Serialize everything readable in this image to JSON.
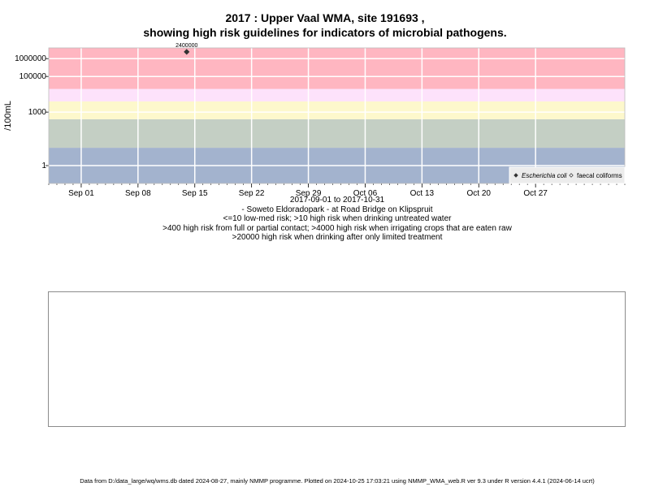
{
  "title": {
    "line1": "2017 : Upper Vaal WMA, site 191693 ,",
    "line2": "showing high risk guidelines for indicators of microbial pathogens."
  },
  "chart_data": {
    "type": "scatter",
    "ylabel": "/100mL",
    "y_scale": "log",
    "ylim": [
      0.1,
      4000000
    ],
    "xlim": [
      "2017-08-28",
      "2017-11-07"
    ],
    "y_ticks": [
      {
        "value": 1,
        "label": "1"
      },
      {
        "value": 1000,
        "label": "1000"
      },
      {
        "value": 100000,
        "label": "100000"
      },
      {
        "value": 1000000,
        "label": "1000000"
      }
    ],
    "x_ticks": [
      {
        "date": "2017-09-01",
        "label": "Sep 01"
      },
      {
        "date": "2017-09-08",
        "label": "Sep 08"
      },
      {
        "date": "2017-09-15",
        "label": "Sep 15"
      },
      {
        "date": "2017-09-22",
        "label": "Sep 22"
      },
      {
        "date": "2017-09-29",
        "label": "Sep 29"
      },
      {
        "date": "2017-10-06",
        "label": "Oct 06"
      },
      {
        "date": "2017-10-13",
        "label": "Oct 13"
      },
      {
        "date": "2017-10-20",
        "label": "Oct 20"
      },
      {
        "date": "2017-10-27",
        "label": "Oct 27"
      }
    ],
    "bands": [
      {
        "from": 0.1,
        "to": 10,
        "color": "#a3b3ce"
      },
      {
        "from": 10,
        "to": 400,
        "color": "#c4cfc4"
      },
      {
        "from": 400,
        "to": 4000,
        "color": "#fdf8cc"
      },
      {
        "from": 4000,
        "to": 20000,
        "color": "#fde2fb"
      },
      {
        "from": 20000,
        "to": 4000000,
        "color": "#ffb6c1"
      }
    ],
    "series": [
      {
        "name": "Escherichia coli",
        "marker": "filled-diamond",
        "color": "#333333",
        "points": [
          {
            "date": "2017-09-14",
            "value": 2400000,
            "label": "2400000"
          }
        ]
      },
      {
        "name": "faecal coliforms",
        "marker": "open-diamond",
        "color": "#333333",
        "points": []
      }
    ],
    "legend_position": "bottom-right",
    "grid": true
  },
  "caption": {
    "date_range": "2017-09-01 to 2017-10-31",
    "site": "- Soweto Eldoradopark - at Road Bridge on Klipspruit",
    "guideline1": "<=10 low-med risk; >10 high risk when drinking untreated water",
    "guideline2": ">400 high risk from full or partial contact; >4000 high risk when irrigating crops that are eaten raw",
    "guideline3": ">20000 high risk when drinking after only limited treatment"
  },
  "footer": "Data from D:/data_large/wq/wms.db dated 2024-08-27, mainly NMMP programme. Plotted on 2024-10-25 17:03:21 using NMMP_WMA_web.R ver 9.3 under R version 4.4.1 (2024-06-14 ucrt)"
}
